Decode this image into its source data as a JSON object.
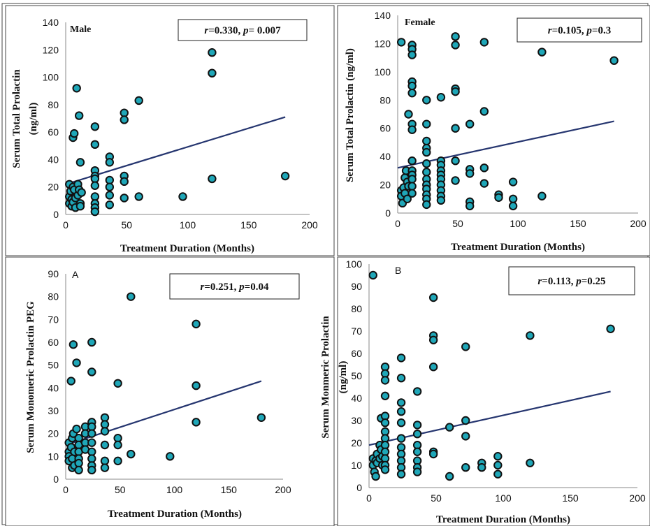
{
  "colors": {
    "marker_fill": "#1fa7b8",
    "marker_stroke": "#111111",
    "trend_line": "#25356f",
    "border": "#444444"
  },
  "chart_data": [
    {
      "type": "scatter",
      "panel_label": "Male",
      "stats": {
        "r_symbol": "r",
        "r": "=0.330, ",
        "p_symbol": "p",
        "p": "= 0.007"
      },
      "xlabel": "Treatment Duration (Months)",
      "ylabel_lines": [
        "Serum  Total  Prolactin",
        "(ng/ml)"
      ],
      "xlim": [
        0,
        200
      ],
      "ylim": [
        0,
        140
      ],
      "xticks": [
        0,
        50,
        100,
        150,
        200
      ],
      "yticks": [
        0,
        20,
        40,
        60,
        80,
        100,
        120,
        140
      ],
      "trendline": {
        "x": [
          0,
          180
        ],
        "y": [
          22,
          71
        ]
      },
      "points": [
        [
          3,
          22
        ],
        [
          3,
          13
        ],
        [
          3,
          8
        ],
        [
          4,
          17
        ],
        [
          5,
          11
        ],
        [
          5,
          6
        ],
        [
          6,
          56
        ],
        [
          6,
          20
        ],
        [
          6,
          9
        ],
        [
          7,
          59
        ],
        [
          7,
          18
        ],
        [
          8,
          12
        ],
        [
          8,
          5
        ],
        [
          9,
          92
        ],
        [
          10,
          22
        ],
        [
          10,
          14
        ],
        [
          11,
          72
        ],
        [
          11,
          18
        ],
        [
          12,
          38
        ],
        [
          12,
          8
        ],
        [
          12,
          6
        ],
        [
          13,
          16
        ],
        [
          24,
          64
        ],
        [
          24,
          51
        ],
        [
          24,
          32
        ],
        [
          24,
          28
        ],
        [
          24,
          26
        ],
        [
          24,
          21
        ],
        [
          24,
          13
        ],
        [
          24,
          8
        ],
        [
          24,
          5
        ],
        [
          24,
          2
        ],
        [
          36,
          42
        ],
        [
          36,
          38
        ],
        [
          36,
          25
        ],
        [
          36,
          20
        ],
        [
          36,
          14
        ],
        [
          36,
          7
        ],
        [
          48,
          74
        ],
        [
          48,
          69
        ],
        [
          48,
          28
        ],
        [
          48,
          24
        ],
        [
          48,
          12
        ],
        [
          60,
          83
        ],
        [
          60,
          13
        ],
        [
          96,
          13
        ],
        [
          120,
          118
        ],
        [
          120,
          103
        ],
        [
          120,
          26
        ],
        [
          180,
          28
        ]
      ]
    },
    {
      "type": "scatter",
      "panel_label": "Female",
      "stats": {
        "r_symbol": "r",
        "r": "=0.105, ",
        "p_symbol": "p",
        "p": "=0.3"
      },
      "xlabel": "Treatment Duration (Months)",
      "ylabel_lines": [
        "Serum Total Prolactin (ng/ml)"
      ],
      "xlim": [
        0,
        200
      ],
      "ylim": [
        0,
        140
      ],
      "xticks": [
        0,
        50,
        100,
        150,
        200
      ],
      "yticks": [
        0,
        20,
        40,
        60,
        80,
        100,
        120,
        140
      ],
      "trendline": {
        "x": [
          0,
          180
        ],
        "y": [
          32,
          65
        ]
      },
      "points": [
        [
          3,
          121
        ],
        [
          3,
          16
        ],
        [
          3,
          12
        ],
        [
          4,
          7
        ],
        [
          5,
          18
        ],
        [
          6,
          25
        ],
        [
          6,
          14
        ],
        [
          7,
          30
        ],
        [
          8,
          22
        ],
        [
          8,
          10
        ],
        [
          9,
          70
        ],
        [
          9,
          19
        ],
        [
          12,
          119
        ],
        [
          12,
          116
        ],
        [
          12,
          112
        ],
        [
          12,
          93
        ],
        [
          12,
          90
        ],
        [
          12,
          85
        ],
        [
          12,
          63
        ],
        [
          12,
          59
        ],
        [
          12,
          37
        ],
        [
          12,
          30
        ],
        [
          12,
          27
        ],
        [
          12,
          24
        ],
        [
          12,
          19
        ],
        [
          12,
          14
        ],
        [
          24,
          80
        ],
        [
          24,
          63
        ],
        [
          24,
          51
        ],
        [
          24,
          46
        ],
        [
          24,
          43
        ],
        [
          24,
          35
        ],
        [
          24,
          29
        ],
        [
          24,
          24
        ],
        [
          24,
          20
        ],
        [
          24,
          17
        ],
        [
          24,
          13
        ],
        [
          24,
          10
        ],
        [
          24,
          6
        ],
        [
          36,
          82
        ],
        [
          36,
          37
        ],
        [
          36,
          34
        ],
        [
          36,
          30
        ],
        [
          36,
          27
        ],
        [
          36,
          24
        ],
        [
          36,
          20
        ],
        [
          36,
          16
        ],
        [
          36,
          12
        ],
        [
          36,
          9
        ],
        [
          48,
          125
        ],
        [
          48,
          119
        ],
        [
          48,
          88
        ],
        [
          48,
          86
        ],
        [
          48,
          60
        ],
        [
          48,
          37
        ],
        [
          48,
          23
        ],
        [
          60,
          63
        ],
        [
          60,
          31
        ],
        [
          60,
          28
        ],
        [
          60,
          8
        ],
        [
          60,
          5
        ],
        [
          72,
          121
        ],
        [
          72,
          72
        ],
        [
          72,
          32
        ],
        [
          72,
          21
        ],
        [
          84,
          13
        ],
        [
          84,
          11
        ],
        [
          96,
          22
        ],
        [
          96,
          10
        ],
        [
          96,
          5
        ],
        [
          120,
          114
        ],
        [
          120,
          12
        ],
        [
          180,
          108
        ]
      ]
    },
    {
      "type": "scatter",
      "panel_label": "A",
      "stats": {
        "r_symbol": "r",
        "r": "=0.251, ",
        "p_symbol": "p",
        "p": "=0.04"
      },
      "xlabel": "Treatment Duration (Months)",
      "ylabel_lines": [
        "Serum Monomeric Prolactin PEG"
      ],
      "xlim": [
        0,
        200
      ],
      "ylim": [
        0,
        90
      ],
      "xticks": [
        0,
        50,
        100,
        150,
        200
      ],
      "yticks": [
        0,
        10,
        20,
        30,
        40,
        50,
        60,
        70,
        80,
        90
      ],
      "trendline": {
        "x": [
          0,
          180
        ],
        "y": [
          15,
          43
        ]
      },
      "points": [
        [
          3,
          16
        ],
        [
          3,
          12
        ],
        [
          3,
          10
        ],
        [
          3,
          8
        ],
        [
          5,
          43
        ],
        [
          5,
          14
        ],
        [
          6,
          18
        ],
        [
          6,
          9
        ],
        [
          6,
          5
        ],
        [
          7,
          59
        ],
        [
          7,
          20
        ],
        [
          8,
          12
        ],
        [
          8,
          6
        ],
        [
          10,
          51
        ],
        [
          10,
          22
        ],
        [
          12,
          18
        ],
        [
          12,
          15
        ],
        [
          12,
          12
        ],
        [
          12,
          9
        ],
        [
          12,
          7
        ],
        [
          12,
          4
        ],
        [
          18,
          23
        ],
        [
          18,
          20
        ],
        [
          18,
          16
        ],
        [
          18,
          13
        ],
        [
          24,
          60
        ],
        [
          24,
          47
        ],
        [
          24,
          25
        ],
        [
          24,
          23
        ],
        [
          24,
          20
        ],
        [
          24,
          16
        ],
        [
          24,
          12
        ],
        [
          24,
          9
        ],
        [
          24,
          6
        ],
        [
          24,
          4
        ],
        [
          36,
          27
        ],
        [
          36,
          24
        ],
        [
          36,
          21
        ],
        [
          36,
          15
        ],
        [
          36,
          8
        ],
        [
          36,
          5
        ],
        [
          48,
          42
        ],
        [
          48,
          18
        ],
        [
          48,
          15
        ],
        [
          48,
          8
        ],
        [
          60,
          80
        ],
        [
          60,
          11
        ],
        [
          96,
          10
        ],
        [
          120,
          68
        ],
        [
          120,
          41
        ],
        [
          120,
          25
        ],
        [
          180,
          27
        ]
      ]
    },
    {
      "type": "scatter",
      "panel_label": "B",
      "stats": {
        "r_symbol": "r",
        "r": "=0.113, ",
        "p_symbol": "p",
        "p": "=0.25"
      },
      "xlabel": "Treatment Duration (Months)",
      "ylabel_lines": [
        "Serum Monmeric Prolactin",
        "(ng/ml)"
      ],
      "xlim": [
        0,
        200
      ],
      "ylim": [
        0,
        100
      ],
      "xticks": [
        0,
        50,
        100,
        150,
        200
      ],
      "yticks": [
        0,
        10,
        20,
        30,
        40,
        50,
        60,
        70,
        80,
        90,
        100
      ],
      "trendline": {
        "x": [
          0,
          180
        ],
        "y": [
          19,
          43
        ]
      },
      "points": [
        [
          3,
          95
        ],
        [
          3,
          13
        ],
        [
          3,
          10
        ],
        [
          4,
          7
        ],
        [
          5,
          5
        ],
        [
          5,
          12
        ],
        [
          6,
          15
        ],
        [
          6,
          11
        ],
        [
          8,
          19
        ],
        [
          8,
          13
        ],
        [
          9,
          31
        ],
        [
          9,
          17
        ],
        [
          10,
          14
        ],
        [
          10,
          10
        ],
        [
          12,
          54
        ],
        [
          12,
          51
        ],
        [
          12,
          48
        ],
        [
          12,
          41
        ],
        [
          12,
          32
        ],
        [
          12,
          29
        ],
        [
          12,
          25
        ],
        [
          12,
          22
        ],
        [
          12,
          19
        ],
        [
          12,
          16
        ],
        [
          12,
          13
        ],
        [
          12,
          10
        ],
        [
          12,
          8
        ],
        [
          24,
          58
        ],
        [
          24,
          49
        ],
        [
          24,
          38
        ],
        [
          24,
          34
        ],
        [
          24,
          29
        ],
        [
          24,
          22
        ],
        [
          24,
          18
        ],
        [
          24,
          15
        ],
        [
          24,
          12
        ],
        [
          24,
          9
        ],
        [
          24,
          6
        ],
        [
          36,
          43
        ],
        [
          36,
          28
        ],
        [
          36,
          24
        ],
        [
          36,
          19
        ],
        [
          36,
          16
        ],
        [
          36,
          12
        ],
        [
          36,
          9
        ],
        [
          36,
          7
        ],
        [
          48,
          85
        ],
        [
          48,
          68
        ],
        [
          48,
          66
        ],
        [
          48,
          54
        ],
        [
          48,
          16
        ],
        [
          48,
          15
        ],
        [
          60,
          27
        ],
        [
          60,
          5
        ],
        [
          72,
          63
        ],
        [
          72,
          30
        ],
        [
          72,
          23
        ],
        [
          72,
          9
        ],
        [
          84,
          11
        ],
        [
          84,
          9
        ],
        [
          96,
          14
        ],
        [
          96,
          10
        ],
        [
          96,
          6
        ],
        [
          120,
          68
        ],
        [
          120,
          11
        ],
        [
          180,
          71
        ]
      ]
    }
  ]
}
